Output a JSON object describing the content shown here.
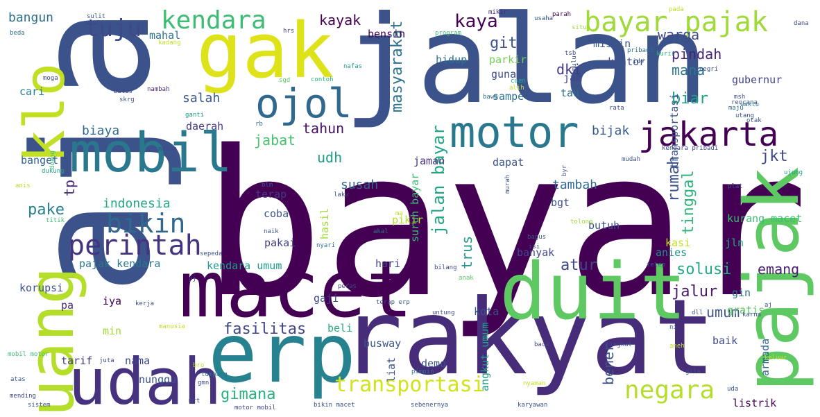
{
  "words": [
    {
      "text": "bayar",
      "color": "#440154",
      "rotate": false
    },
    {
      "text": "aja",
      "color": "#3b528b",
      "rotate": true
    },
    {
      "text": "jalan",
      "color": "#3b528b",
      "rotate": false
    },
    {
      "text": "gak",
      "color": "#dde318",
      "rotate": false
    },
    {
      "text": "rakyat",
      "color": "#472c7a",
      "rotate": false
    },
    {
      "text": "macet",
      "color": "#440154",
      "rotate": false
    },
    {
      "text": "duit",
      "color": "#5ec962",
      "rotate": false
    },
    {
      "text": "erp",
      "color": "#26828e",
      "rotate": false
    },
    {
      "text": "udah",
      "color": "#46327e",
      "rotate": false
    },
    {
      "text": "uang",
      "color": "#b5de2b",
      "rotate": true
    },
    {
      "text": "klo",
      "color": "#c2df23",
      "rotate": true
    },
    {
      "text": "pajak",
      "color": "#5ec962",
      "rotate": true
    },
    {
      "text": "mobil",
      "color": "#2a788e",
      "rotate": false
    },
    {
      "text": "motor",
      "color": "#2a788e",
      "rotate": false
    },
    {
      "text": "ojol",
      "color": "#31688e",
      "rotate": false
    },
    {
      "text": "jakarta",
      "color": "#440154",
      "rotate": false
    },
    {
      "text": "bayar pajak",
      "color": "#a0da39",
      "rotate": false
    },
    {
      "text": "kendara",
      "color": "#3dbc74",
      "rotate": false
    },
    {
      "text": "tuju",
      "color": "#3e4989",
      "rotate": false
    },
    {
      "text": "perintah",
      "color": "#46337f",
      "rotate": false
    },
    {
      "text": "bikin",
      "color": "#31688e",
      "rotate": false
    },
    {
      "text": "negara",
      "color": "#b5de2b",
      "rotate": false
    },
    {
      "text": "transportasi",
      "color": "#d2e21b",
      "rotate": false
    },
    {
      "text": "gimana",
      "color": "#2ab07f",
      "rotate": false
    },
    {
      "text": "jalan bayar",
      "color": "#21a685",
      "rotate": true
    },
    {
      "text": "kaya",
      "color": "#440154",
      "rotate": false
    },
    {
      "text": "warga",
      "color": "#3e4989",
      "rotate": false
    },
    {
      "text": "pindah",
      "color": "#482475",
      "rotate": false
    },
    {
      "text": "mana",
      "color": "#2a788e",
      "rotate": false
    },
    {
      "text": "biar",
      "color": "#1f9e89",
      "rotate": false
    },
    {
      "text": "jkt",
      "color": "#3e4989",
      "rotate": false
    },
    {
      "text": "rumah",
      "color": "#3b528b",
      "rotate": true
    },
    {
      "text": "tinggal",
      "color": "#2fb47c",
      "rotate": true
    },
    {
      "text": "solusi",
      "color": "#22a884",
      "rotate": false
    },
    {
      "text": "emang",
      "color": "#482071",
      "rotate": false
    },
    {
      "text": "jalur",
      "color": "#481b6d",
      "rotate": false
    },
    {
      "text": "umum",
      "color": "#3b528b",
      "rotate": false
    },
    {
      "text": "bener",
      "color": "#3b528b",
      "rotate": true
    },
    {
      "text": "fasilitas",
      "color": "#404688",
      "rotate": false
    },
    {
      "text": "masyarakat",
      "color": "#2c728e",
      "rotate": true
    },
    {
      "text": "gitu",
      "color": "#3b528b",
      "rotate": false
    },
    {
      "text": "kayak",
      "color": "#440154",
      "rotate": false
    },
    {
      "text": "mahal",
      "color": "#2d708e",
      "rotate": false
    },
    {
      "text": "bangun",
      "color": "#2c728e",
      "rotate": false
    },
    {
      "text": "salah",
      "color": "#38588c",
      "rotate": false
    },
    {
      "text": "tahun",
      "color": "#471063",
      "rotate": false
    },
    {
      "text": "biaya",
      "color": "#2f6b8e",
      "rotate": false
    },
    {
      "text": "jabat",
      "color": "#48c16e",
      "rotate": false
    },
    {
      "text": "indonesia",
      "color": "#22a884",
      "rotate": false
    },
    {
      "text": "pake",
      "color": "#27808e",
      "rotate": false
    },
    {
      "text": "tp",
      "color": "#482878",
      "rotate": true
    },
    {
      "text": "susah",
      "color": "#33638d",
      "rotate": false
    },
    {
      "text": "udh",
      "color": "#1f9a8a",
      "rotate": false
    },
    {
      "text": "dki",
      "color": "#443983",
      "rotate": false
    },
    {
      "text": "bijak",
      "color": "#365c8d",
      "rotate": false
    },
    {
      "text": "atur",
      "color": "#3e4989",
      "rotate": false
    },
    {
      "text": "tambah",
      "color": "#31688e",
      "rotate": false
    },
    {
      "text": "trus",
      "color": "#1f988b",
      "rotate": true
    },
    {
      "text": "hidup",
      "color": "#2d708e",
      "rotate": false
    },
    {
      "text": "parkir",
      "color": "#73d056",
      "rotate": false
    },
    {
      "text": "miskin",
      "color": "#39568c",
      "rotate": false
    },
    {
      "text": "kantor",
      "color": "#3b528b",
      "rotate": false
    },
    {
      "text": "bensin",
      "color": "#440154",
      "rotate": false
    },
    {
      "text": "guna",
      "color": "#3e4989",
      "rotate": false
    },
    {
      "text": "jam",
      "color": "#414487",
      "rotate": false
    },
    {
      "text": "tau",
      "color": "#2e6e8e",
      "rotate": false
    },
    {
      "text": "sampe",
      "color": "#2d708e",
      "rotate": false
    },
    {
      "text": "gubernur",
      "color": "#404688",
      "rotate": false
    },
    {
      "text": "transportasi",
      "color": "#3b528b",
      "rotate": true
    },
    {
      "text": "daerah",
      "color": "#443983",
      "rotate": false
    },
    {
      "text": "banget",
      "color": "#32658e",
      "rotate": false
    },
    {
      "text": "jaman",
      "color": "#46337f",
      "rotate": false
    },
    {
      "text": "dapat",
      "color": "#3b528b",
      "rotate": false
    },
    {
      "text": "bgt",
      "color": "#3b528b",
      "rotate": false
    },
    {
      "text": "coba",
      "color": "#3b528b",
      "rotate": false
    },
    {
      "text": "terap",
      "color": "#443983",
      "rotate": false
    },
    {
      "text": "pikir",
      "color": "#b5de2b",
      "rotate": false
    },
    {
      "text": "suruh bayar",
      "color": "#3dbc74",
      "rotate": true
    },
    {
      "text": "hasil",
      "color": "#a0da39",
      "rotate": true
    },
    {
      "text": "butuh",
      "color": "#3b528b",
      "rotate": false
    },
    {
      "text": "kurang macet",
      "color": "#3dbc74",
      "rotate": false
    },
    {
      "text": "kasi",
      "color": "#c2df23",
      "rotate": false
    },
    {
      "text": "jln",
      "color": "#22a884",
      "rotate": false
    },
    {
      "text": "anies",
      "color": "#20928c",
      "rotate": false
    },
    {
      "text": "pakai",
      "color": "#414487",
      "rotate": false
    },
    {
      "text": "kendara umum",
      "color": "#1f9e89",
      "rotate": false
    },
    {
      "text": "pajak kendara",
      "color": "#2a788e",
      "rotate": false
    },
    {
      "text": "hari",
      "color": "#3e4989",
      "rotate": false
    },
    {
      "text": "banyak",
      "color": "#3e4989",
      "rotate": false
    },
    {
      "text": "korupsi",
      "color": "#3b528b",
      "rotate": false
    },
    {
      "text": "gaji",
      "color": "#3e4989",
      "rotate": false
    },
    {
      "text": "pa",
      "color": "#482878",
      "rotate": false
    },
    {
      "text": "iya",
      "color": "#440154",
      "rotate": false
    },
    {
      "text": "kota",
      "color": "#3b528b",
      "rotate": false
    },
    {
      "text": "gin",
      "color": "#2d708e",
      "rotate": false
    },
    {
      "text": "gratis",
      "color": "#5ec962",
      "rotate": false
    },
    {
      "text": "beli",
      "color": "#2ab07f",
      "rotate": false
    },
    {
      "text": "min",
      "color": "#a0da39",
      "rotate": false
    },
    {
      "text": "nama",
      "color": "#3e4989",
      "rotate": false
    },
    {
      "text": "busway",
      "color": "#3b528b",
      "rotate": false
    },
    {
      "text": "angkut umum",
      "color": "#1f9e89",
      "rotate": true
    },
    {
      "text": "baik",
      "color": "#3e4989",
      "rotate": false
    },
    {
      "text": "tarif",
      "color": "#443983",
      "rotate": false
    },
    {
      "text": "nunggu",
      "color": "#3b528b",
      "rotate": false
    },
    {
      "text": "demo",
      "color": "#3b528b",
      "rotate": false
    },
    {
      "text": "liat",
      "color": "#3b528b",
      "rotate": true
    },
    {
      "text": "armada",
      "color": "#31688e",
      "rotate": true
    },
    {
      "text": "listrik",
      "color": "#440154",
      "rotate": false
    },
    {
      "text": "cari",
      "color": "#26828e",
      "rotate": false
    },
    {
      "text": "anis",
      "color": "#bddf26",
      "rotate": false
    },
    {
      "text": "beda",
      "color": "#2d708e",
      "rotate": false
    },
    {
      "text": "sulit",
      "color": "#3b528b",
      "rotate": false
    },
    {
      "text": "program",
      "color": "#3dbc74",
      "rotate": false
    },
    {
      "text": "usaha",
      "color": "#3b528b",
      "rotate": false
    },
    {
      "text": "situ",
      "color": "#a0da39",
      "rotate": false
    },
    {
      "text": "pribadi",
      "color": "#2d708e",
      "rotate": false
    },
    {
      "text": "kurir",
      "color": "#2ab07f",
      "rotate": false
    },
    {
      "text": "pada",
      "color": "#c2df23",
      "rotate": false
    },
    {
      "text": "dana",
      "color": "#3e4989",
      "rotate": false
    },
    {
      "text": "parah",
      "color": "#440154",
      "rotate": false
    },
    {
      "text": "mikir",
      "color": "#482878",
      "rotate": false
    },
    {
      "text": "hrs",
      "color": "#3e4989",
      "rotate": false
    },
    {
      "text": "kadang",
      "color": "#c2df23",
      "rotate": false
    },
    {
      "text": "moga",
      "color": "#3e4989",
      "rotate": false
    },
    {
      "text": "sgd",
      "color": "#5ec962",
      "rotate": false
    },
    {
      "text": "contoh",
      "color": "#2ab07f",
      "rotate": false
    },
    {
      "text": "nafas",
      "color": "#1f9e89",
      "rotate": false
    },
    {
      "text": "tsb",
      "color": "#3e4989",
      "rotate": false
    },
    {
      "text": "mulu",
      "color": "#3b528b",
      "rotate": true
    },
    {
      "text": "ide",
      "color": "#3b528b",
      "rotate": false
    },
    {
      "text": "batas",
      "color": "#3e4989",
      "rotate": false
    },
    {
      "text": "skrg",
      "color": "#3b528b",
      "rotate": false
    },
    {
      "text": "nambah",
      "color": "#482878",
      "rotate": false
    },
    {
      "text": "cuan",
      "color": "#21a685",
      "rotate": false
    },
    {
      "text": "alih",
      "color": "#c2df23",
      "rotate": false
    },
    {
      "text": "bawa",
      "color": "#2d708e",
      "rotate": false
    },
    {
      "text": "negri",
      "color": "#3b528b",
      "rotate": false
    },
    {
      "text": "msh",
      "color": "#3b528b",
      "rotate": false
    },
    {
      "text": "rencana",
      "color": "#3b528b",
      "rotate": false
    },
    {
      "text": "waktu",
      "color": "#2a788e",
      "rotate": false
    },
    {
      "text": "maju",
      "color": "#2d708e",
      "rotate": false
    },
    {
      "text": "utang",
      "color": "#3b528b",
      "rotate": false
    },
    {
      "text": "rata",
      "color": "#3e4989",
      "rotate": false
    },
    {
      "text": "otak",
      "color": "#3b528b",
      "rotate": false
    },
    {
      "text": "ganti",
      "color": "#1f9e89",
      "rotate": false
    },
    {
      "text": "rb",
      "color": "#2d708e",
      "rotate": false
    },
    {
      "text": "makan",
      "color": "#3e4989",
      "rotate": false
    },
    {
      "text": "kendara pribadi",
      "color": "#3e4989",
      "rotate": false
    },
    {
      "text": "mudah",
      "color": "#3b528b",
      "rotate": false
    },
    {
      "text": "byr",
      "color": "#3b528b",
      "rotate": true
    },
    {
      "text": "ujung",
      "color": "#1f9e89",
      "rotate": false
    },
    {
      "text": "doang",
      "color": "#3dbc74",
      "rotate": true
    },
    {
      "text": "dukung",
      "color": "#21a685",
      "rotate": false
    },
    {
      "text": "blm",
      "color": "#3b528b",
      "rotate": false
    },
    {
      "text": "laku",
      "color": "#3e4989",
      "rotate": false
    },
    {
      "text": "murah",
      "color": "#3b528b",
      "rotate": true
    },
    {
      "text": "plat",
      "color": "#3b528b",
      "rotate": false
    },
    {
      "text": "titik",
      "color": "#3dbc74",
      "rotate": false
    },
    {
      "text": "ma",
      "color": "#c2df23",
      "rotate": false
    },
    {
      "text": "akal",
      "color": "#2d708e",
      "rotate": false
    },
    {
      "text": "tolong",
      "color": "#a0da39",
      "rotate": false
    },
    {
      "text": "naik",
      "color": "#3b528b",
      "rotate": false
    },
    {
      "text": "nyari",
      "color": "#2d708e",
      "rotate": false
    },
    {
      "text": "bagus",
      "color": "#3b528b",
      "rotate": false
    },
    {
      "text": "isi",
      "color": "#3e4989",
      "rotate": false
    },
    {
      "text": "sepeda",
      "color": "#3b528b",
      "rotate": false
    },
    {
      "text": "bilang",
      "color": "#3e4989",
      "rotate": false
    },
    {
      "text": "tetep",
      "color": "#3b528b",
      "rotate": false
    },
    {
      "text": "pj",
      "color": "#3e4989",
      "rotate": false
    },
    {
      "text": "peras",
      "color": "#3e4989",
      "rotate": false
    },
    {
      "text": "anak",
      "color": "#5ec962",
      "rotate": false
    },
    {
      "text": "kerja",
      "color": "#3b528b",
      "rotate": false
    },
    {
      "text": "terap erp",
      "color": "#3b528b",
      "rotate": false
    },
    {
      "text": "untung",
      "color": "#3e4989",
      "rotate": false
    },
    {
      "text": "dll",
      "color": "#3b528b",
      "rotate": false
    },
    {
      "text": "karna",
      "color": "#3b528b",
      "rotate": false
    },
    {
      "text": "aj",
      "color": "#3b528b",
      "rotate": false
    },
    {
      "text": "manusia",
      "color": "#c2df23",
      "rotate": false
    },
    {
      "text": "ni",
      "color": "#3b528b",
      "rotate": false
    },
    {
      "text": "baca",
      "color": "#3e4989",
      "rotate": false
    },
    {
      "text": "tingkat",
      "color": "#3e4989",
      "rotate": false
    },
    {
      "text": "aneh",
      "color": "#c2df23",
      "rotate": false
    },
    {
      "text": "mobil motor",
      "color": "#3dbc74",
      "rotate": false
    },
    {
      "text": "juta",
      "color": "#3e4989",
      "rotate": false
    },
    {
      "text": "bro",
      "color": "#bddf26",
      "rotate": false
    },
    {
      "text": "pimpin",
      "color": "#2d708e",
      "rotate": false
    },
    {
      "text": "keluar",
      "color": "#c2df23",
      "rotate": false
    },
    {
      "text": "gila",
      "color": "#3b528b",
      "rotate": false
    },
    {
      "text": "atas",
      "color": "#3b528b",
      "rotate": false
    },
    {
      "text": "tumpang",
      "color": "#2d708e",
      "rotate": false
    },
    {
      "text": "gmn",
      "color": "#3e4989",
      "rotate": false
    },
    {
      "text": "nyaman",
      "color": "#c2df23",
      "rotate": false
    },
    {
      "text": "uda",
      "color": "#3b528b",
      "rotate": false
    },
    {
      "text": "mending",
      "color": "#3e4989",
      "rotate": false
    },
    {
      "text": "mrt",
      "color": "#3e4989",
      "rotate": false
    },
    {
      "text": "sistem",
      "color": "#3b528b",
      "rotate": false
    },
    {
      "text": "motor mobil",
      "color": "#3e4989",
      "rotate": false
    },
    {
      "text": "bikin macet",
      "color": "#3b528b",
      "rotate": false
    },
    {
      "text": "sebenernya",
      "color": "#3b528b",
      "rotate": false
    },
    {
      "text": "karyawan",
      "color": "#3b528b",
      "rotate": false
    }
  ]
}
